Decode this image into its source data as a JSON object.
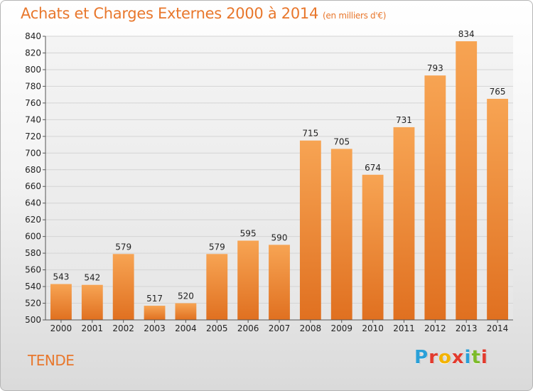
{
  "title": "Achats et Charges Externes 2000 à 2014",
  "unit": "(en milliers d'€)",
  "place_name": "TENDE",
  "logo": {
    "text": "Proxiti",
    "letters": [
      {
        "char": "P",
        "color": "#2aa0d8"
      },
      {
        "char": "r",
        "color": "#e23b2e"
      },
      {
        "char": "o",
        "color": "#f3b300"
      },
      {
        "char": "x",
        "color": "#e23b2e"
      },
      {
        "char": "i",
        "color": "#2aa0d8"
      },
      {
        "char": "t",
        "color": "#7dbb2a"
      },
      {
        "char": "i",
        "color": "#e23b2e"
      }
    ]
  },
  "colors": {
    "bar_light": "#f7a453",
    "bar_dark": "#e07020",
    "title": "#e8772c",
    "grid": "#d4d4d4"
  },
  "chart_data": {
    "type": "bar",
    "title": "Achats et Charges Externes 2000 à 2014",
    "xlabel": "",
    "ylabel": "",
    "categories": [
      "2000",
      "2001",
      "2002",
      "2003",
      "2004",
      "2005",
      "2006",
      "2007",
      "2008",
      "2009",
      "2010",
      "2011",
      "2012",
      "2013",
      "2014"
    ],
    "values": [
      543,
      542,
      579,
      517,
      520,
      579,
      595,
      590,
      715,
      705,
      674,
      731,
      793,
      834,
      765
    ],
    "ylim": [
      500,
      840
    ],
    "yticks": [
      500,
      520,
      540,
      560,
      580,
      600,
      620,
      640,
      660,
      680,
      700,
      720,
      740,
      760,
      780,
      800,
      820,
      840
    ],
    "grid": true,
    "legend": "none"
  }
}
